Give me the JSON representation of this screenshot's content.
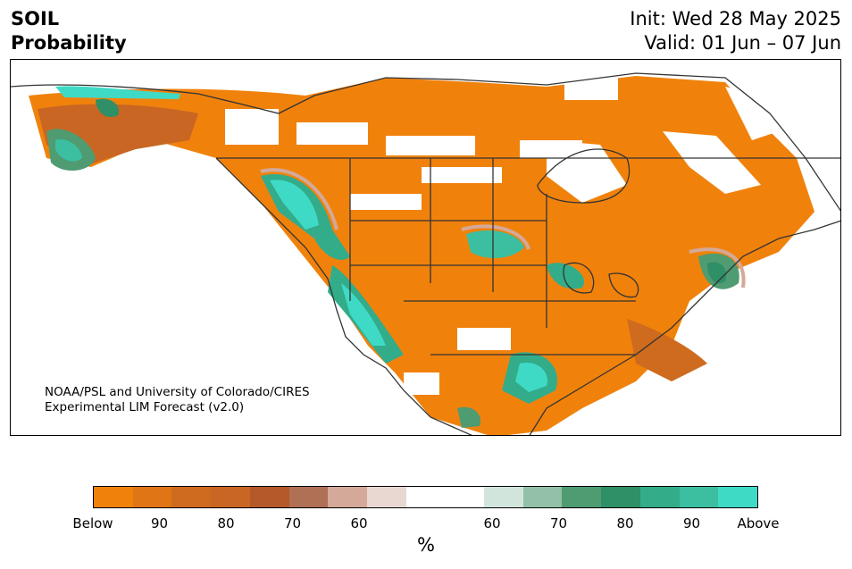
{
  "header": {
    "title_line1": "SOIL",
    "title_line2": "Probability",
    "init": "Init: Wed 28 May 2025",
    "valid": "Valid: 01 Jun – 07 Jun"
  },
  "map": {
    "credit_line1": "NOAA/PSL and University of Colorado/CIRES",
    "credit_line2": "Experimental LIM Forecast (v2.0)"
  },
  "colorbar": {
    "colors": [
      "#f0820c",
      "#df7515",
      "#cf6b1e",
      "#c96623",
      "#b3592a",
      "#b07055",
      "#d5a999",
      "#e9d8d1",
      "#ffffff",
      "#ffffff",
      "#d1e5dd",
      "#92c0a8",
      "#4f9b72",
      "#2f8f66",
      "#33ac8a",
      "#3bbfa0",
      "#3fdac6"
    ],
    "tick_labels": [
      "Below",
      "90",
      "80",
      "70",
      "60",
      "60",
      "70",
      "80",
      "90",
      "Above"
    ],
    "unit": "%"
  }
}
